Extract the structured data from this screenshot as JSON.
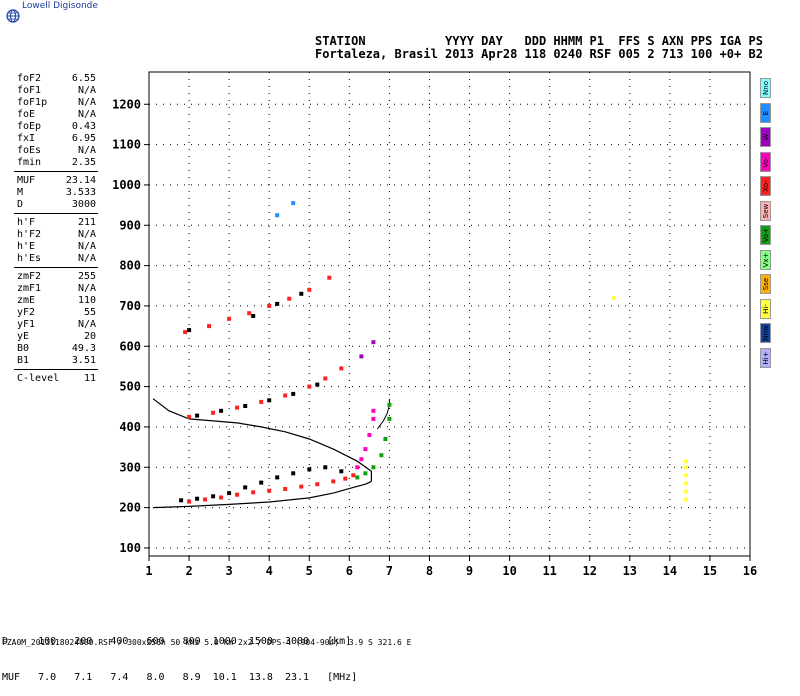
{
  "logo": {
    "text": "Lowell Digisonde",
    "icon": "globe-icon"
  },
  "header": {
    "line1": "STATION           YYYY DAY   DDD HHMM P1  FFS S AXN PPS IGA PS",
    "line2": "Fortaleza, Brasil 2013 Apr28 118 0240 RSF 005 2 713 100 +0+ B2"
  },
  "params": [
    [
      {
        "name": "foF2",
        "value": "6.55"
      },
      {
        "name": "foF1",
        "value": "N/A"
      },
      {
        "name": "foF1p",
        "value": "N/A"
      },
      {
        "name": "foE",
        "value": "N/A"
      },
      {
        "name": "foEp",
        "value": "0.43"
      },
      {
        "name": "fxI",
        "value": "6.95"
      },
      {
        "name": "foEs",
        "value": "N/A"
      },
      {
        "name": "fmin",
        "value": "2.35"
      }
    ],
    [
      {
        "name": "MUF",
        "value": "23.14"
      },
      {
        "name": "M",
        "value": "3.533"
      },
      {
        "name": "D",
        "value": "3000"
      }
    ],
    [
      {
        "name": "h'F",
        "value": "211"
      },
      {
        "name": "h'F2",
        "value": "N/A"
      },
      {
        "name": "h'E",
        "value": "N/A"
      },
      {
        "name": "h'Es",
        "value": "N/A"
      }
    ],
    [
      {
        "name": "zmF2",
        "value": "255"
      },
      {
        "name": "zmF1",
        "value": "N/A"
      },
      {
        "name": "zmE",
        "value": "110"
      },
      {
        "name": "yF2",
        "value": "55"
      },
      {
        "name": "yF1",
        "value": "N/A"
      },
      {
        "name": "yE",
        "value": "20"
      },
      {
        "name": "B0",
        "value": "49.3"
      },
      {
        "name": "B1",
        "value": "3.51"
      }
    ],
    [
      {
        "name": "C-level",
        "value": "11"
      }
    ]
  ],
  "legend": [
    {
      "label": "Nno",
      "color": "#7fffff"
    },
    {
      "label": "E",
      "color": "#1e90ff"
    },
    {
      "label": "W",
      "color": "#a000c0"
    },
    {
      "label": "Vo-",
      "color": "#ff00c0"
    },
    {
      "label": "Xo-",
      "color": "#ff2020"
    },
    {
      "label": "Sew",
      "color": "#ffb0b0"
    },
    {
      "label": "Vo+",
      "color": "#10a010"
    },
    {
      "label": "Vx+",
      "color": "#80ff80"
    },
    {
      "label": "Sse",
      "color": "#ffb000"
    },
    {
      "label": "Hi-",
      "color": "#ffff40"
    },
    {
      "label": "Nnw",
      "color": "#1040a0"
    },
    {
      "label": "Hi+",
      "color": "#b0b0ff"
    }
  ],
  "muf_table": {
    "row1": "D     100   200   400   600   800  1000  1500  3000   [km]",
    "row2": "MUF   7.0   7.1   7.4   8.0   8.9  10.1  13.8  23.1   [MHz]"
  },
  "footer": "FZA0M_2013118024000.RSF / 300x256h 50 kHz 5.0 km 2x2 / DPS-4 (904-904)  3.9 S 321.6 E",
  "chart_data": {
    "type": "scatter",
    "xlim": [
      1,
      16
    ],
    "ylim": [
      80,
      1280
    ],
    "xticks": [
      1,
      2,
      3,
      4,
      5,
      6,
      7,
      8,
      9,
      10,
      11,
      12,
      13,
      14,
      15,
      16
    ],
    "yticks": [
      100,
      200,
      300,
      400,
      500,
      600,
      700,
      800,
      900,
      1000,
      1100,
      1200
    ],
    "grid": true,
    "series": [
      {
        "color": "#ff2020",
        "points": [
          [
            2.0,
            215
          ],
          [
            2.4,
            220
          ],
          [
            2.8,
            225
          ],
          [
            3.2,
            232
          ],
          [
            3.6,
            238
          ],
          [
            4.0,
            242
          ],
          [
            4.4,
            246
          ],
          [
            4.8,
            252
          ],
          [
            5.2,
            258
          ],
          [
            5.6,
            265
          ],
          [
            5.9,
            272
          ],
          [
            6.1,
            280
          ]
        ]
      },
      {
        "color": "#000000",
        "points": [
          [
            1.8,
            218
          ],
          [
            2.2,
            222
          ],
          [
            2.6,
            228
          ],
          [
            3.0,
            236
          ],
          [
            3.4,
            250
          ],
          [
            3.8,
            262
          ],
          [
            4.2,
            275
          ],
          [
            4.6,
            285
          ],
          [
            5.0,
            295
          ],
          [
            5.4,
            300
          ],
          [
            5.8,
            290
          ]
        ]
      },
      {
        "color": "#10a010",
        "points": [
          [
            6.2,
            275
          ],
          [
            6.4,
            285
          ],
          [
            6.6,
            300
          ],
          [
            6.8,
            330
          ],
          [
            6.9,
            370
          ],
          [
            7.0,
            420
          ],
          [
            7.0,
            455
          ]
        ]
      },
      {
        "color": "#ff00c0",
        "points": [
          [
            6.2,
            300
          ],
          [
            6.3,
            320
          ],
          [
            6.4,
            345
          ],
          [
            6.5,
            380
          ],
          [
            6.6,
            420
          ],
          [
            6.6,
            440
          ]
        ]
      },
      {
        "color": "#ff2020",
        "points": [
          [
            2.0,
            425
          ],
          [
            2.6,
            435
          ],
          [
            3.2,
            448
          ],
          [
            3.8,
            462
          ],
          [
            4.4,
            478
          ],
          [
            5.0,
            500
          ],
          [
            5.4,
            520
          ],
          [
            5.8,
            545
          ]
        ]
      },
      {
        "color": "#000000",
        "points": [
          [
            2.2,
            428
          ],
          [
            2.8,
            440
          ],
          [
            3.4,
            452
          ],
          [
            4.0,
            466
          ],
          [
            4.6,
            482
          ],
          [
            5.2,
            505
          ]
        ]
      },
      {
        "color": "#ff2020",
        "points": [
          [
            1.9,
            635
          ],
          [
            2.5,
            650
          ],
          [
            3.0,
            668
          ],
          [
            3.5,
            682
          ],
          [
            4.0,
            700
          ],
          [
            4.5,
            718
          ],
          [
            5.0,
            740
          ],
          [
            5.5,
            770
          ]
        ]
      },
      {
        "color": "#000000",
        "points": [
          [
            2.0,
            640
          ],
          [
            3.6,
            675
          ],
          [
            4.2,
            705
          ],
          [
            4.8,
            730
          ]
        ]
      },
      {
        "color": "#a000c0",
        "points": [
          [
            6.3,
            575
          ],
          [
            6.6,
            610
          ]
        ]
      },
      {
        "color": "#1e90ff",
        "points": [
          [
            4.2,
            925
          ],
          [
            4.6,
            955
          ]
        ]
      },
      {
        "color": "#ffff40",
        "points": [
          [
            12.6,
            720
          ],
          [
            14.4,
            220
          ],
          [
            14.4,
            240
          ],
          [
            14.4,
            260
          ],
          [
            14.4,
            280
          ],
          [
            14.4,
            300
          ],
          [
            14.4,
            315
          ]
        ]
      }
    ],
    "profile_trace": [
      [
        7.0,
        470
      ],
      [
        7.0,
        455
      ],
      [
        6.95,
        435
      ],
      [
        6.85,
        415
      ],
      [
        6.7,
        395
      ]
    ],
    "model_profile_upper": [
      [
        1.1,
        470
      ],
      [
        1.5,
        440
      ],
      [
        2.0,
        420
      ],
      [
        2.6,
        415
      ],
      [
        3.2,
        410
      ],
      [
        3.8,
        400
      ],
      [
        4.4,
        388
      ],
      [
        5.0,
        370
      ],
      [
        5.6,
        345
      ],
      [
        6.2,
        315
      ],
      [
        6.55,
        290
      ],
      [
        6.55,
        265
      ]
    ],
    "model_profile_lower": [
      [
        1.1,
        200
      ],
      [
        2.0,
        203
      ],
      [
        3.0,
        208
      ],
      [
        4.0,
        214
      ],
      [
        5.0,
        224
      ],
      [
        5.6,
        236
      ],
      [
        6.1,
        250
      ],
      [
        6.4,
        258
      ],
      [
        6.55,
        265
      ]
    ]
  }
}
